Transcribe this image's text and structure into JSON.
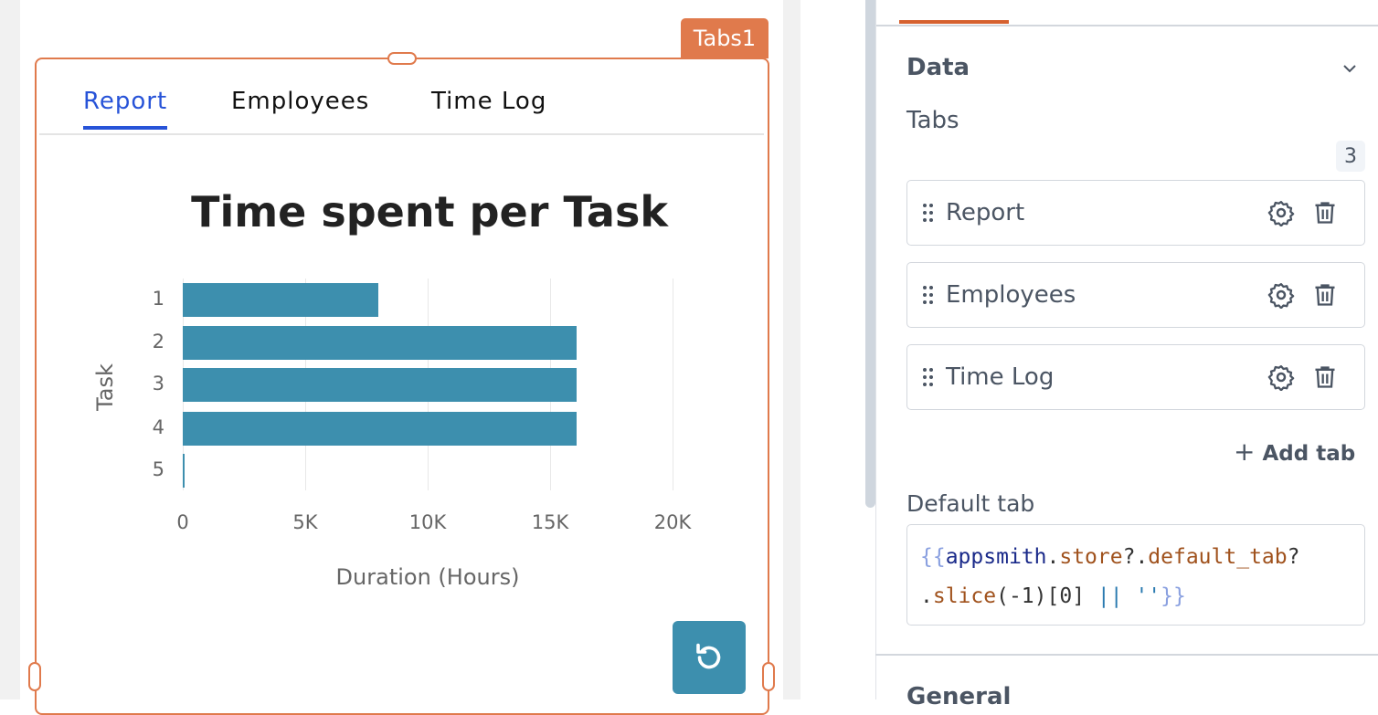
{
  "widget": {
    "name": "Tabs1",
    "tabs": [
      {
        "label": "Report",
        "active": true
      },
      {
        "label": "Employees"
      },
      {
        "label": "Time Log"
      }
    ],
    "accent": "#e07a4c",
    "active_tab_color": "#2753d8"
  },
  "chart_data": {
    "type": "bar",
    "orientation": "horizontal",
    "title": "Time spent per Task",
    "xlabel": "Duration (Hours)",
    "ylabel": "Task",
    "categories": [
      "1",
      "2",
      "3",
      "4",
      "5"
    ],
    "values": [
      8000,
      16100,
      16100,
      16100,
      50
    ],
    "xlim": [
      0,
      23000
    ],
    "xticks": [
      {
        "v": 0,
        "l": "0"
      },
      {
        "v": 5000,
        "l": "5K"
      },
      {
        "v": 10000,
        "l": "10K"
      },
      {
        "v": 15000,
        "l": "15K"
      },
      {
        "v": 20000,
        "l": "20K"
      }
    ],
    "grid": true,
    "color": "#3d8fae"
  },
  "refresh_icon": "refresh-icon",
  "panel": {
    "section": "Data",
    "tabs_label": "Tabs",
    "tabs_count": "3",
    "items": [
      {
        "label": "Report"
      },
      {
        "label": "Employees"
      },
      {
        "label": "Time Log"
      }
    ],
    "add_tab": "Add tab",
    "default_tab_label": "Default tab",
    "default_tab_code": {
      "open": "{{",
      "obj": "appsmith",
      "dot1": ".",
      "store": "store",
      "q1": "?.",
      "def": "default_tab",
      "q2": "?",
      "line2_dot": ".",
      "slice": "slice",
      "args": "(-1)[0] ",
      "or": "||",
      "str": " ''",
      "close": "}}"
    },
    "next_section": "General"
  }
}
